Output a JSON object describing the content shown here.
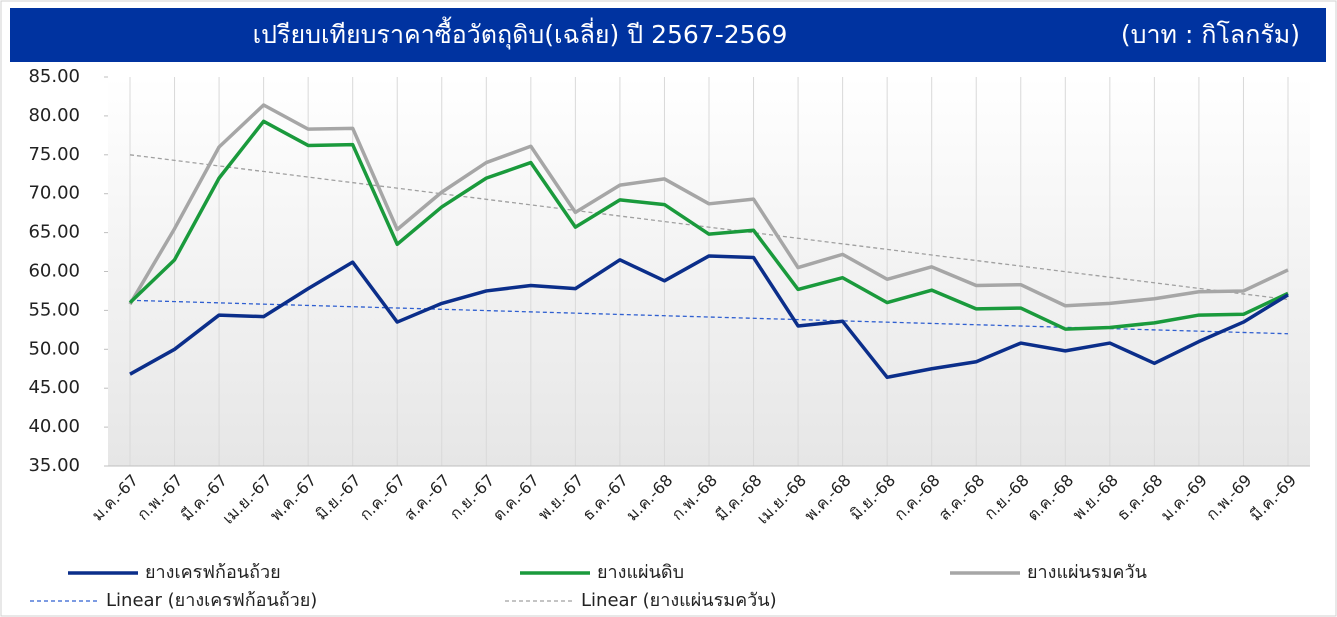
{
  "chart_data": {
    "type": "line",
    "title": "เปรียบเทียบราคาซื้อวัตถุดิบ(เฉลี่ย) ปี 2567-2569",
    "unit": "(บาท : กิโลกรัม)",
    "categories": [
      "ม.ค.-67",
      "ก.พ.-67",
      "มี.ค.-67",
      "เม.ย.-67",
      "พ.ค.-67",
      "มิ.ย.-67",
      "ก.ค.-67",
      "ส.ค.-67",
      "ก.ย.-67",
      "ต.ค.-67",
      "พ.ย.-67",
      "ธ.ค.-67",
      "ม.ค.-68",
      "ก.พ.-68",
      "มี.ค.-68",
      "เม.ย.-68",
      "พ.ค.-68",
      "มิ.ย.-68",
      "ก.ค.-68",
      "ส.ค.-68",
      "ก.ย.-68",
      "ต.ค.-68",
      "พ.ย.-68",
      "ธ.ค.-68",
      "ม.ค.-69",
      "ก.พ.-69",
      "มี.ค.-69"
    ],
    "series": [
      {
        "name": "ยางเครฟก้อนถ้วย",
        "color": "#0b2e8a",
        "values": [
          46.8,
          50.0,
          54.4,
          54.2,
          57.8,
          61.2,
          53.5,
          55.9,
          57.5,
          58.2,
          57.8,
          61.5,
          58.8,
          62.0,
          61.8,
          53.0,
          53.6,
          46.4,
          47.5,
          48.4,
          50.8,
          49.8,
          50.8,
          48.2,
          51.0,
          53.5,
          57.0
        ]
      },
      {
        "name": "ยางแผ่นดิบ",
        "color": "#1a9a3c",
        "values": [
          56.0,
          61.5,
          72.0,
          79.3,
          76.2,
          76.3,
          63.5,
          68.3,
          72.0,
          74.0,
          65.7,
          69.2,
          68.6,
          64.8,
          65.3,
          57.7,
          59.2,
          56.0,
          57.6,
          55.2,
          55.3,
          52.6,
          52.8,
          53.4,
          54.4,
          54.5,
          57.2
        ]
      },
      {
        "name": "ยางแผ่นรมควัน",
        "color": "#a6a6a6",
        "values": [
          55.8,
          65.5,
          76.0,
          81.4,
          78.3,
          78.4,
          65.4,
          70.2,
          74.0,
          76.1,
          67.6,
          71.1,
          71.9,
          68.7,
          69.3,
          60.5,
          62.2,
          59.0,
          60.6,
          58.2,
          58.3,
          55.6,
          55.9,
          56.5,
          57.4,
          57.5,
          60.2
        ]
      }
    ],
    "trends": [
      {
        "name": "Linear (ยางเครฟก้อนถ้วย)",
        "color": "#2f5fd0",
        "start": 56.3,
        "end": 52.0
      },
      {
        "name": "Linear (ยางแผ่นรมควัน)",
        "color": "#a0a0a0",
        "start": 75.0,
        "end": 56.4
      }
    ],
    "ylim": [
      35,
      85
    ],
    "yticks": [
      {
        "value": 35,
        "label": "35.00"
      },
      {
        "value": 40,
        "label": "40.00"
      },
      {
        "value": 45,
        "label": "45.00"
      },
      {
        "value": 50,
        "label": "50.00"
      },
      {
        "value": 55,
        "label": "55.00"
      },
      {
        "value": 60,
        "label": "60.00"
      },
      {
        "value": 65,
        "label": "65.00"
      },
      {
        "value": 70,
        "label": "70.00"
      },
      {
        "value": 75,
        "label": "75.00"
      },
      {
        "value": 80,
        "label": "80.00"
      },
      {
        "value": 85,
        "label": "85.00"
      }
    ],
    "grid": false
  }
}
